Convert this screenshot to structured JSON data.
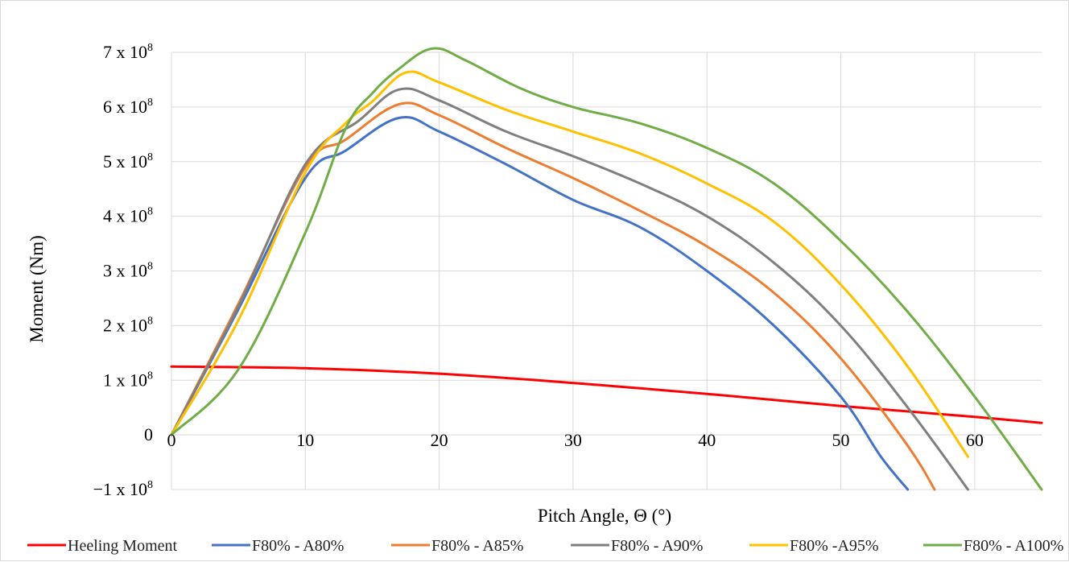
{
  "chart_data": {
    "type": "line",
    "title": "",
    "xlabel": "Pitch Angle, Θ (°)",
    "ylabel": "Moment (Nm)",
    "xlim": [
      0,
      65
    ],
    "ylim": [
      -100000000,
      700000000
    ],
    "grid": true,
    "legend_position": "bottom",
    "x_ticks": [
      {
        "value": 0,
        "label": "0"
      },
      {
        "value": 10,
        "label": "10"
      },
      {
        "value": 20,
        "label": "20"
      },
      {
        "value": 30,
        "label": "30"
      },
      {
        "value": 40,
        "label": "40"
      },
      {
        "value": 50,
        "label": "50"
      },
      {
        "value": 60,
        "label": "60"
      }
    ],
    "y_ticks": [
      {
        "value": -100000000,
        "label": "−1 x 10",
        "exp": "8"
      },
      {
        "value": 0,
        "label": "0",
        "exp": ""
      },
      {
        "value": 100000000,
        "label": "1 x 10",
        "exp": "8"
      },
      {
        "value": 200000000,
        "label": "2 x 10",
        "exp": "8"
      },
      {
        "value": 300000000,
        "label": "3 x 10",
        "exp": "8"
      },
      {
        "value": 400000000,
        "label": "4 x 10",
        "exp": "8"
      },
      {
        "value": 500000000,
        "label": "5 x 10",
        "exp": "8"
      },
      {
        "value": 600000000,
        "label": "6 x 10",
        "exp": "8"
      },
      {
        "value": 700000000,
        "label": "7 x 10",
        "exp": "8"
      }
    ],
    "series": [
      {
        "name": "Heeling Moment",
        "color": "#ff0000",
        "points": [
          [
            0,
            125000000
          ],
          [
            10,
            122000000
          ],
          [
            20,
            112000000
          ],
          [
            30,
            95000000
          ],
          [
            40,
            75000000
          ],
          [
            50,
            53000000
          ],
          [
            60,
            33000000
          ],
          [
            65,
            22000000
          ]
        ]
      },
      {
        "name": "F80% - A80%",
        "color": "#4472c4",
        "points": [
          [
            0,
            0
          ],
          [
            5,
            230000000
          ],
          [
            10,
            470000000
          ],
          [
            13,
            520000000
          ],
          [
            17,
            580000000
          ],
          [
            20,
            555000000
          ],
          [
            25,
            495000000
          ],
          [
            30,
            430000000
          ],
          [
            35,
            380000000
          ],
          [
            40,
            300000000
          ],
          [
            45,
            200000000
          ],
          [
            50,
            70000000
          ],
          [
            53,
            -40000000
          ],
          [
            55,
            -100000000
          ]
        ]
      },
      {
        "name": "F80% - A85%",
        "color": "#ed7d31",
        "points": [
          [
            0,
            0
          ],
          [
            5,
            240000000
          ],
          [
            10,
            490000000
          ],
          [
            13,
            540000000
          ],
          [
            17,
            605000000
          ],
          [
            20,
            585000000
          ],
          [
            25,
            525000000
          ],
          [
            30,
            470000000
          ],
          [
            35,
            410000000
          ],
          [
            40,
            345000000
          ],
          [
            45,
            260000000
          ],
          [
            50,
            140000000
          ],
          [
            55,
            -20000000
          ],
          [
            57,
            -100000000
          ]
        ]
      },
      {
        "name": "F80% - A90%",
        "color": "#7f7f7f",
        "points": [
          [
            0,
            0
          ],
          [
            5,
            235000000
          ],
          [
            10,
            495000000
          ],
          [
            14,
            575000000
          ],
          [
            17,
            632000000
          ],
          [
            20,
            612000000
          ],
          [
            25,
            555000000
          ],
          [
            30,
            510000000
          ],
          [
            35,
            460000000
          ],
          [
            40,
            400000000
          ],
          [
            45,
            315000000
          ],
          [
            50,
            200000000
          ],
          [
            55,
            50000000
          ],
          [
            59.5,
            -100000000
          ]
        ]
      },
      {
        "name": "F80% -A95%",
        "color": "#ffc000",
        "points": [
          [
            0,
            0
          ],
          [
            5,
            210000000
          ],
          [
            10,
            480000000
          ],
          [
            13,
            570000000
          ],
          [
            15,
            610000000
          ],
          [
            17.5,
            663000000
          ],
          [
            20,
            645000000
          ],
          [
            25,
            595000000
          ],
          [
            30,
            555000000
          ],
          [
            35,
            515000000
          ],
          [
            40,
            460000000
          ],
          [
            45,
            390000000
          ],
          [
            50,
            275000000
          ],
          [
            55,
            125000000
          ],
          [
            59.5,
            -40000000
          ]
        ]
      },
      {
        "name": "F80% - A100%",
        "color": "#70ad47",
        "points": [
          [
            0,
            0
          ],
          [
            5,
            120000000
          ],
          [
            10,
            370000000
          ],
          [
            13,
            560000000
          ],
          [
            15,
            625000000
          ],
          [
            17,
            670000000
          ],
          [
            19.5,
            707000000
          ],
          [
            22,
            685000000
          ],
          [
            26,
            635000000
          ],
          [
            30,
            600000000
          ],
          [
            35,
            570000000
          ],
          [
            40,
            525000000
          ],
          [
            45,
            460000000
          ],
          [
            50,
            355000000
          ],
          [
            55,
            225000000
          ],
          [
            60,
            70000000
          ],
          [
            65,
            -100000000
          ]
        ]
      }
    ]
  }
}
